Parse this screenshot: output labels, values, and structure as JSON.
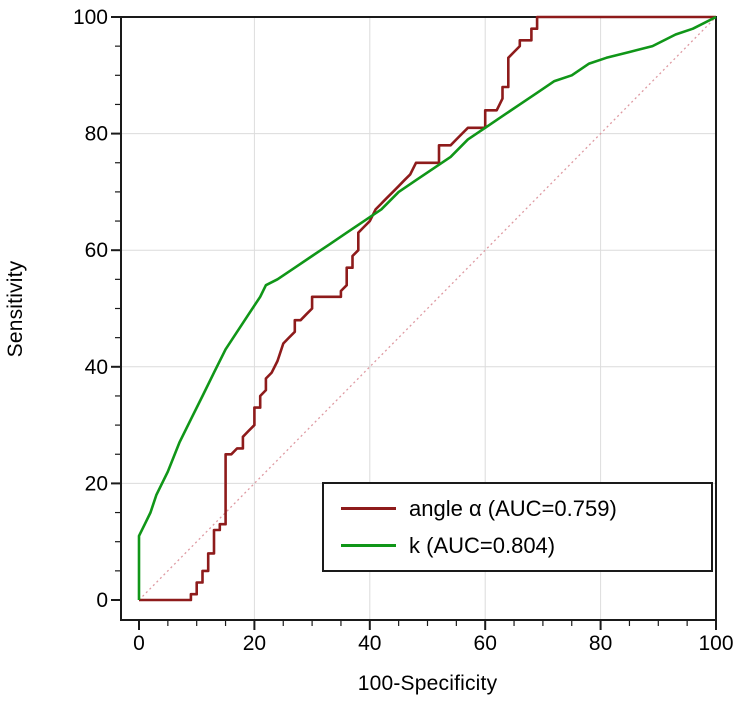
{
  "chart_data": {
    "type": "line",
    "title": "",
    "xlabel": "100-Specificity",
    "ylabel": "Sensitivity",
    "xlim": [
      0,
      100
    ],
    "ylim": [
      0,
      100
    ],
    "x_ticks": [
      0,
      20,
      40,
      60,
      80,
      100
    ],
    "y_ticks": [
      0,
      20,
      40,
      60,
      80,
      100
    ],
    "minor_tick_step": 5,
    "grid": true,
    "grid_color": "#DCDCDC",
    "frame_color": "#1A1A1A",
    "reference_line": {
      "name": "chance-diagonal",
      "from": [
        0,
        0
      ],
      "to": [
        100,
        100
      ],
      "color": "#DE9AA2",
      "style": "dotted"
    },
    "legend": {
      "position": "bottom-right",
      "entries": [
        "angle α (AUC=0.759)",
        "k (AUC=0.804)"
      ]
    },
    "series": [
      {
        "name": "angle α (AUC=0.759)",
        "auc": 0.759,
        "color": "#8E1B1B",
        "points": [
          [
            0,
            0
          ],
          [
            9,
            0
          ],
          [
            9,
            1
          ],
          [
            10,
            1
          ],
          [
            10,
            3
          ],
          [
            11,
            3
          ],
          [
            11,
            5
          ],
          [
            12,
            5
          ],
          [
            12,
            8
          ],
          [
            13,
            8
          ],
          [
            13,
            12
          ],
          [
            14,
            12
          ],
          [
            14,
            13
          ],
          [
            15,
            13
          ],
          [
            15,
            25
          ],
          [
            16,
            25
          ],
          [
            17,
            26
          ],
          [
            18,
            26
          ],
          [
            18,
            28
          ],
          [
            19,
            29
          ],
          [
            20,
            30
          ],
          [
            20,
            33
          ],
          [
            21,
            33
          ],
          [
            21,
            35
          ],
          [
            22,
            36
          ],
          [
            22,
            38
          ],
          [
            23,
            39
          ],
          [
            24,
            41
          ],
          [
            25,
            44
          ],
          [
            26,
            45
          ],
          [
            27,
            46
          ],
          [
            27,
            48
          ],
          [
            28,
            48
          ],
          [
            29,
            49
          ],
          [
            30,
            50
          ],
          [
            30,
            52
          ],
          [
            31,
            52
          ],
          [
            35,
            52
          ],
          [
            35,
            53
          ],
          [
            36,
            54
          ],
          [
            36,
            57
          ],
          [
            37,
            57
          ],
          [
            37,
            59
          ],
          [
            38,
            60
          ],
          [
            38,
            63
          ],
          [
            39,
            64
          ],
          [
            40,
            65
          ],
          [
            41,
            67
          ],
          [
            42,
            68
          ],
          [
            43,
            69
          ],
          [
            44,
            70
          ],
          [
            45,
            71
          ],
          [
            46,
            72
          ],
          [
            47,
            73
          ],
          [
            48,
            75
          ],
          [
            52,
            75
          ],
          [
            52,
            78
          ],
          [
            54,
            78
          ],
          [
            55,
            79
          ],
          [
            56,
            80
          ],
          [
            57,
            81
          ],
          [
            60,
            81
          ],
          [
            60,
            84
          ],
          [
            62,
            84
          ],
          [
            63,
            86
          ],
          [
            63,
            88
          ],
          [
            64,
            88
          ],
          [
            64,
            93
          ],
          [
            65,
            94
          ],
          [
            66,
            95
          ],
          [
            66,
            96
          ],
          [
            68,
            96
          ],
          [
            68,
            98
          ],
          [
            69,
            98
          ],
          [
            69,
            100
          ],
          [
            71,
            100
          ],
          [
            100,
            100
          ]
        ]
      },
      {
        "name": "k (AUC=0.804)",
        "auc": 0.804,
        "color": "#109618",
        "points": [
          [
            0,
            0
          ],
          [
            0,
            11
          ],
          [
            1,
            13
          ],
          [
            2,
            15
          ],
          [
            3,
            18
          ],
          [
            5,
            22
          ],
          [
            7,
            27
          ],
          [
            9,
            31
          ],
          [
            11,
            35
          ],
          [
            13,
            39
          ],
          [
            15,
            43
          ],
          [
            17,
            46
          ],
          [
            19,
            49
          ],
          [
            21,
            52
          ],
          [
            22,
            54
          ],
          [
            24,
            55
          ],
          [
            27,
            57
          ],
          [
            30,
            59
          ],
          [
            33,
            61
          ],
          [
            36,
            63
          ],
          [
            39,
            65
          ],
          [
            42,
            67
          ],
          [
            45,
            70
          ],
          [
            48,
            72
          ],
          [
            51,
            74
          ],
          [
            54,
            76
          ],
          [
            57,
            79
          ],
          [
            60,
            81
          ],
          [
            63,
            83
          ],
          [
            66,
            85
          ],
          [
            69,
            87
          ],
          [
            72,
            89
          ],
          [
            75,
            90
          ],
          [
            78,
            92
          ],
          [
            81,
            93
          ],
          [
            85,
            94
          ],
          [
            89,
            95
          ],
          [
            93,
            97
          ],
          [
            96,
            98
          ],
          [
            100,
            100
          ]
        ]
      }
    ]
  }
}
